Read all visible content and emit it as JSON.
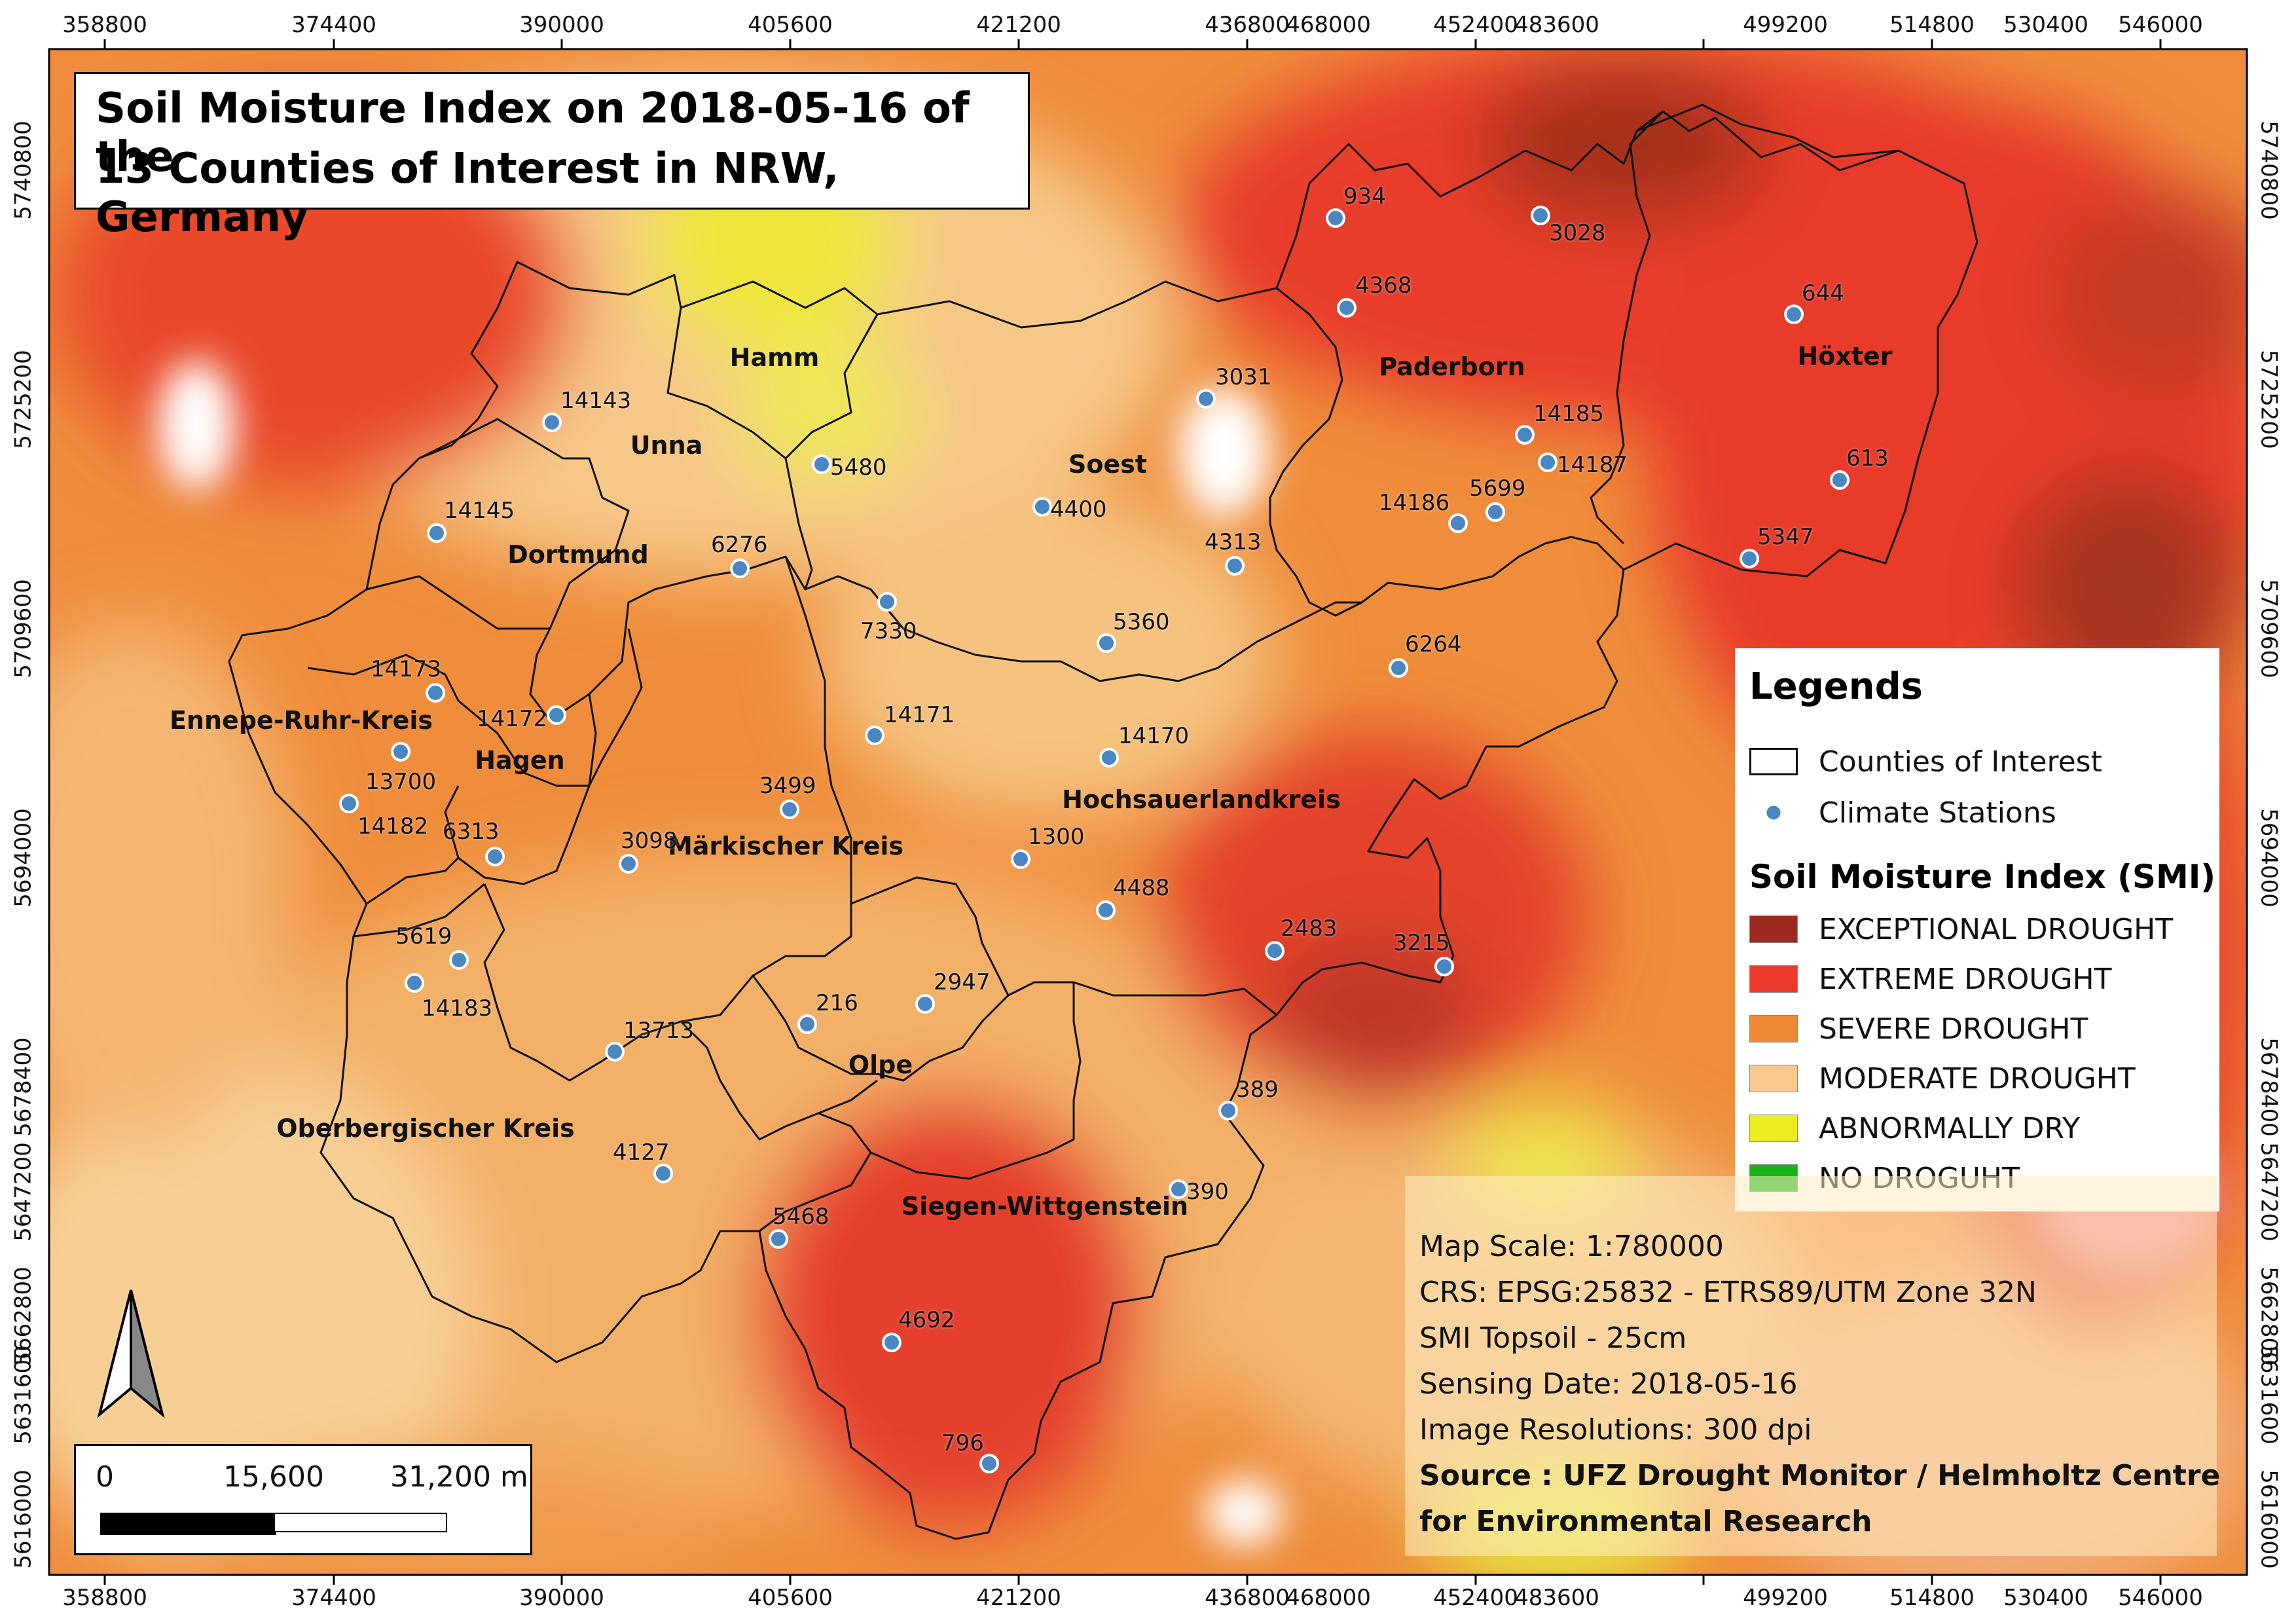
{
  "title": {
    "line1": "Soil Moisture Index on 2018-05-16 of the",
    "line2": "13 Counties of Interest in NRW, Germany"
  },
  "axes": {
    "x_ticks": [
      "358800",
      "374400",
      "390000",
      "405600",
      "421200",
      "436800",
      "452400",
      "468000",
      "483600",
      "499200",
      "514800",
      "530400",
      "546000"
    ],
    "y_ticks": [
      "5740800",
      "5725200",
      "5709600",
      "5694000",
      "5678400",
      "5662800",
      "5647200",
      "5631600",
      "5616000"
    ]
  },
  "counties": [
    {
      "name": "Hamm"
    },
    {
      "name": "Unna"
    },
    {
      "name": "Dortmund"
    },
    {
      "name": "Soest"
    },
    {
      "name": "Paderborn"
    },
    {
      "name": "Höxter"
    },
    {
      "name": "Ennepe-Ruhr-Kreis"
    },
    {
      "name": "Hagen"
    },
    {
      "name": "Märkischer Kreis"
    },
    {
      "name": "Hochsauerlandkreis"
    },
    {
      "name": "Olpe"
    },
    {
      "name": "Oberbergischer Kreis"
    },
    {
      "name": "Siegen-Wittgenstein"
    }
  ],
  "stations": [
    "934",
    "3028",
    "4368",
    "644",
    "3031",
    "14143",
    "14185",
    "14187",
    "5480",
    "5699",
    "14186",
    "613",
    "14145",
    "4400",
    "5347",
    "6276",
    "4313",
    "7330",
    "5360",
    "6264",
    "14173",
    "14172",
    "14171",
    "14170",
    "13700",
    "3499",
    "14182",
    "6313",
    "3098",
    "1300",
    "4488",
    "5619",
    "14183",
    "2483",
    "3215",
    "2947",
    "216",
    "13713",
    "389",
    "4127",
    "390",
    "5468",
    "4692",
    "796"
  ],
  "legend": {
    "heading": "Legends",
    "counties_label": "Counties of Interest",
    "stations_label": "Climate Stations",
    "smi_heading": "Soil Moisture Index (SMI)",
    "classes": [
      {
        "label": "EXCEPTIONAL DROUGHT",
        "color": "#9c2a1e"
      },
      {
        "label": "EXTREME DROUGHT",
        "color": "#ea3a2c"
      },
      {
        "label": "SEVERE DROUGHT",
        "color": "#ee8a33"
      },
      {
        "label": "MODERATE DROUGHT",
        "color": "#f7c98f"
      },
      {
        "label": "ABNORMALLY DRY",
        "color": "#ecec22"
      },
      {
        "label": "NO DROGUHT",
        "color": "#17b317"
      }
    ]
  },
  "info": {
    "scale": "Map Scale: 1:780000",
    "crs": "CRS: EPSG:25832 - ETRS89/UTM Zone 32N",
    "smi": "SMI Topsoil - 25cm",
    "date": "Sensing Date: 2018-05-16",
    "resolution": "Image Resolutions: 300 dpi",
    "source_line1": "Source : UFZ Drought Monitor / Helmholtz Centre",
    "source_line2": "for Environmental Research"
  },
  "scalebar": {
    "labels": [
      "0",
      "15,600",
      "31,200 m"
    ]
  },
  "north_arrow": {
    "icon": "north-arrow-icon"
  },
  "colors": {
    "station_fill": "#4a86c0",
    "boundary": "#111111"
  }
}
